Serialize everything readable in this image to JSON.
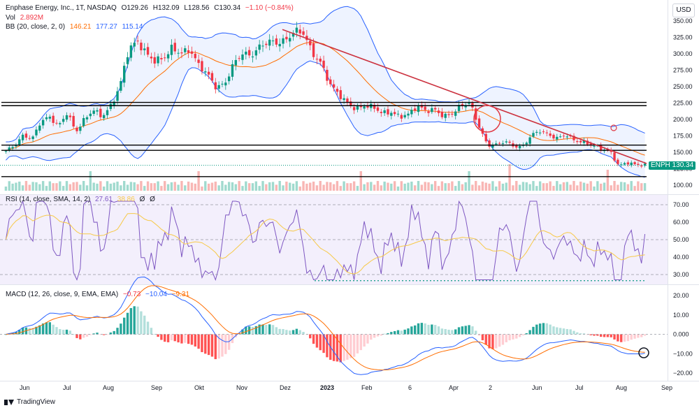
{
  "header": {
    "symbol": "Enphase Energy, Inc., 1T, NASDAQ",
    "o_label": "O",
    "o_value": "129.26",
    "h_label": "H",
    "h_value": "132.09",
    "l_label": "L",
    "l_value": "128.56",
    "c_label": "C",
    "c_value": "130.34",
    "change": "−1.10 (−0.84%)"
  },
  "vol": {
    "label": "Vol",
    "value": "2.892M"
  },
  "bb": {
    "label": "BB (20, close, 2, 0)",
    "basis": "146.21",
    "upper": "177.27",
    "lower": "115.14"
  },
  "rsi": {
    "label": "RSI (14, close, SMA, 14, 2)",
    "value": "27.61",
    "sma": "38.86",
    "extra1": "Ø",
    "extra2": "Ø"
  },
  "macd": {
    "label": "MACD (12, 26, close, 9, EMA, EMA)",
    "hist": "−0.73",
    "macd": "−10.04",
    "signal": "−9.31"
  },
  "currency_button": "USD",
  "ticker_tag": {
    "symbol": "ENPH",
    "price": "130.34"
  },
  "brand": "TradingView",
  "colors": {
    "up": "#089981",
    "down": "#f23645",
    "bb": "#2962ff",
    "basis": "#ff6d00",
    "trend": "#cc3340",
    "rsi": "#7e57c2"
  },
  "chart_data": {
    "type": "candlestick",
    "title": "Enphase Energy, Inc., 1T, NASDAQ",
    "price_ticks": [
      "350.00",
      "325.00",
      "300.00",
      "275.00",
      "250.00",
      "225.00",
      "200.00",
      "175.00",
      "150.00",
      "125.00",
      "100.00"
    ],
    "rsi_ticks": [
      "70.00",
      "60.00",
      "50.00",
      "40.00",
      "30.00"
    ],
    "macd_ticks": [
      "20.00",
      "10.00",
      "0.000",
      "−10.00",
      "−20.00"
    ],
    "x_labels": [
      "Jun",
      "Jul",
      "Aug",
      "Sep",
      "Okt",
      "Nov",
      "Dez",
      "2023",
      "Feb",
      "6",
      "Apr",
      "2",
      "Jun",
      "Jul",
      "Aug",
      "Sep"
    ],
    "price_close_weekly": [
      152,
      160,
      175,
      170,
      198,
      205,
      190,
      210,
      180,
      200,
      215,
      205,
      222,
      250,
      305,
      318,
      300,
      290,
      295,
      310,
      300,
      305,
      282,
      270,
      250,
      255,
      285,
      300,
      295,
      310,
      320,
      318,
      322,
      335,
      330,
      300,
      285,
      255,
      240,
      225,
      215,
      220,
      218,
      210,
      212,
      205,
      208,
      220,
      212,
      215,
      205,
      210,
      222,
      225,
      190,
      160,
      162,
      168,
      160,
      158,
      175,
      182,
      176,
      172,
      178,
      168,
      165,
      160,
      155,
      152,
      130,
      135,
      131,
      130
    ],
    "horizontal_levels": [
      226,
      221,
      161,
      153,
      113
    ],
    "trendline": {
      "from": {
        "date": "Dez",
        "price": 337
      },
      "to": {
        "date": "Sep",
        "price": 133
      }
    },
    "last_price": 130.34
  }
}
